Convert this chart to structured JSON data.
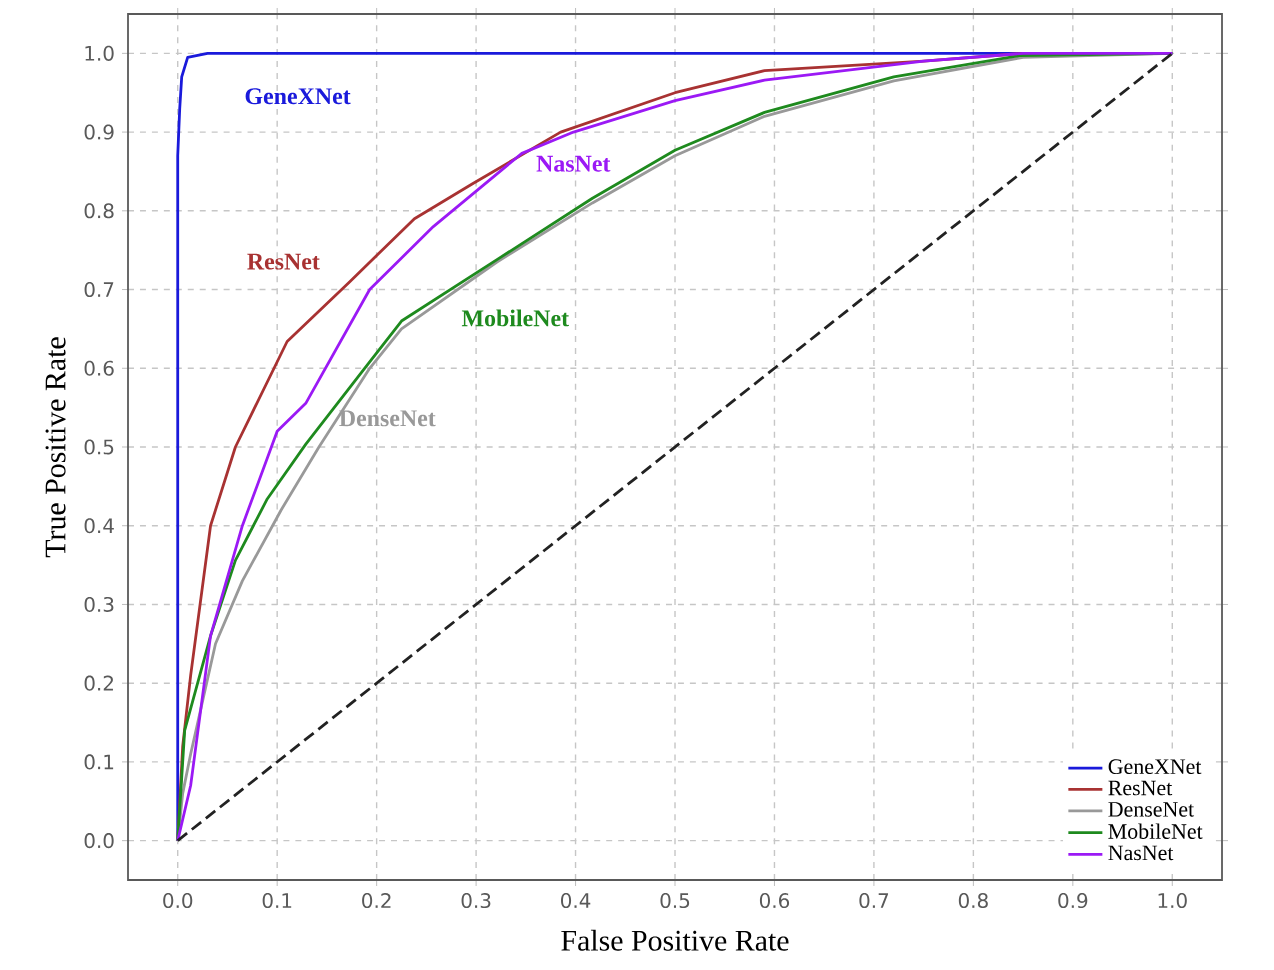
{
  "chart_data": {
    "type": "line",
    "xlabel": "False Positive Rate",
    "ylabel": "True Positive Rate",
    "xlim": [
      -0.05,
      1.05
    ],
    "ylim": [
      -0.05,
      1.05
    ],
    "xticks": [
      {
        "value": 0,
        "label": "0.0"
      },
      {
        "value": 0.1,
        "label": "0.1"
      },
      {
        "value": 0.2,
        "label": "0.2"
      },
      {
        "value": 0.3,
        "label": "0.3"
      },
      {
        "value": 0.4,
        "label": "0.4"
      },
      {
        "value": 0.5,
        "label": "0.5"
      },
      {
        "value": 0.6,
        "label": "0.6"
      },
      {
        "value": 0.7,
        "label": "0.7"
      },
      {
        "value": 0.8,
        "label": "0.8"
      },
      {
        "value": 0.9,
        "label": "0.9"
      },
      {
        "value": 1,
        "label": "1.0"
      }
    ],
    "yticks": [
      {
        "value": 0,
        "label": "0.0"
      },
      {
        "value": 0.1,
        "label": "0.1"
      },
      {
        "value": 0.2,
        "label": "0.2"
      },
      {
        "value": 0.3,
        "label": "0.3"
      },
      {
        "value": 0.4,
        "label": "0.4"
      },
      {
        "value": 0.5,
        "label": "0.5"
      },
      {
        "value": 0.6,
        "label": "0.6"
      },
      {
        "value": 0.7,
        "label": "0.7"
      },
      {
        "value": 0.8,
        "label": "0.8"
      },
      {
        "value": 0.9,
        "label": "0.9"
      },
      {
        "value": 1,
        "label": "1.0"
      }
    ],
    "grid": true,
    "legend": "bottom right",
    "marker": "none",
    "series": [
      {
        "name": "GeneXNet",
        "color": "#1a1adb",
        "x": [
          0,
          0,
          0.002,
          0.004,
          0.01,
          0.03,
          1
        ],
        "values": [
          0,
          0.87,
          0.93,
          0.97,
          0.995,
          1,
          1
        ]
      },
      {
        "name": "ResNet",
        "color": "#a83232",
        "x": [
          0,
          0.005,
          0.013,
          0.033,
          0.058,
          0.11,
          0.173,
          0.238,
          0.296,
          0.385,
          0.5,
          0.59,
          0.75,
          0.85,
          1
        ],
        "values": [
          0,
          0.12,
          0.21,
          0.4,
          0.5,
          0.634,
          0.71,
          0.79,
          0.834,
          0.9,
          0.95,
          0.978,
          0.99,
          1,
          1
        ]
      },
      {
        "name": "DenseNet",
        "color": "#999999",
        "x": [
          0,
          0.005,
          0.013,
          0.038,
          0.065,
          0.104,
          0.142,
          0.193,
          0.225,
          0.321,
          0.417,
          0.5,
          0.59,
          0.72,
          0.85,
          1
        ],
        "values": [
          0,
          0.06,
          0.11,
          0.25,
          0.33,
          0.42,
          0.5,
          0.6,
          0.65,
          0.735,
          0.81,
          0.87,
          0.92,
          0.965,
          0.995,
          1
        ]
      },
      {
        "name": "MobileNet",
        "color": "#1e8a1e",
        "x": [
          0,
          0.007,
          0.033,
          0.058,
          0.09,
          0.129,
          0.193,
          0.225,
          0.321,
          0.417,
          0.5,
          0.59,
          0.72,
          0.846,
          1
        ],
        "values": [
          0,
          0.14,
          0.26,
          0.356,
          0.434,
          0.504,
          0.608,
          0.66,
          0.738,
          0.816,
          0.877,
          0.925,
          0.97,
          0.997,
          1
        ]
      },
      {
        "name": "NasNet",
        "color": "#9b19f5",
        "x": [
          0,
          0.013,
          0.033,
          0.065,
          0.1,
          0.129,
          0.193,
          0.257,
          0.346,
          0.398,
          0.5,
          0.59,
          0.75,
          0.85,
          1
        ],
        "values": [
          0,
          0.07,
          0.26,
          0.4,
          0.52,
          0.556,
          0.7,
          0.78,
          0.873,
          0.9,
          0.94,
          0.966,
          0.99,
          1,
          1
        ]
      },
      {
        "color": "#222222",
        "line_style": "dashed",
        "x": [
          0,
          1
        ],
        "values": [
          0,
          1
        ]
      }
    ],
    "annotations": [
      "GeneXNet",
      "ResNet",
      "DenseNet",
      "MobileNet",
      "NasNet"
    ]
  }
}
